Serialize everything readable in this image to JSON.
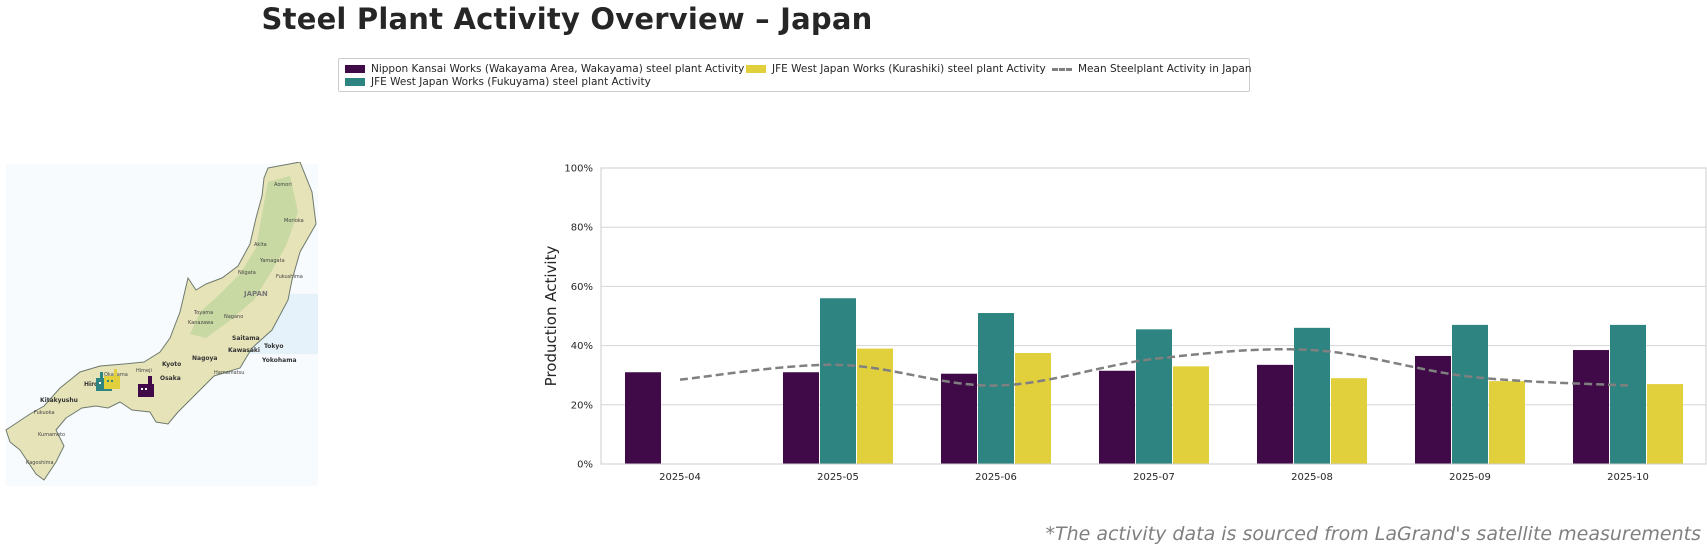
{
  "title": "Steel Plant Activity Overview – Japan",
  "footnote": "*The activity data is sourced from LaGrand's satellite measurements",
  "legend": {
    "items": [
      {
        "label": "Nippon Kansai Works (Wakayama Area, Wakayama) steel plant Activity",
        "color": "#3f0a47",
        "kind": "bar"
      },
      {
        "label": "JFE West Japan Works (Fukuyama) steel plant Activity",
        "color": "#2d8480",
        "kind": "bar"
      },
      {
        "label": "JFE West Japan Works (Kurashiki) steel plant Activity",
        "color": "#e1d03c",
        "kind": "bar"
      },
      {
        "label": "Mean Steelplant Activity in Japan",
        "color": "#808080",
        "kind": "line"
      }
    ]
  },
  "map": {
    "country_label": "JAPAN",
    "cities": [
      "Aomori",
      "Morioka",
      "Akita",
      "Yamagata",
      "Niigata",
      "Fukushima",
      "Toyama",
      "Kanazawa",
      "Nagano",
      "Saitama",
      "Tokyo",
      "Kawasaki",
      "Yokohama",
      "Nagoya",
      "Hamamatsu",
      "Kyoto",
      "Osaka",
      "Himeji",
      "Okayama",
      "Hiroshima",
      "Kitakyushu",
      "Fukuoka",
      "Kumamoto",
      "Kagoshima"
    ],
    "markers": [
      {
        "plant": "JFE West Japan Works (Fukuyama)",
        "color": "#2d8480",
        "icon": "factory-icon"
      },
      {
        "plant": "JFE West Japan Works (Kurashiki)",
        "color": "#e1d03c",
        "icon": "factory-icon"
      },
      {
        "plant": "Nippon Kansai Works (Wakayama Area, Wakayama)",
        "color": "#3f0a47",
        "icon": "factory-icon"
      }
    ]
  },
  "chart_data": {
    "type": "bar",
    "title": "Steel Plant Activity Overview – Japan",
    "xlabel": "",
    "ylabel": "Production Activity",
    "ylim": [
      0,
      100
    ],
    "yticks": [
      "0%",
      "20%",
      "40%",
      "60%",
      "80%",
      "100%"
    ],
    "categories": [
      "2025-04",
      "2025-05",
      "2025-06",
      "2025-07",
      "2025-08",
      "2025-09",
      "2025-10"
    ],
    "series": [
      {
        "name": "Nippon Kansai Works (Wakayama Area, Wakayama) steel plant Activity",
        "type": "bar",
        "color": "#3f0a47",
        "values": [
          31,
          31,
          30.5,
          31.5,
          33.5,
          36.5,
          38.5
        ]
      },
      {
        "name": "JFE West Japan Works (Fukuyama) steel plant Activity",
        "type": "bar",
        "color": "#2d8480",
        "values": [
          null,
          56,
          51,
          45.5,
          46,
          47,
          47
        ]
      },
      {
        "name": "JFE West Japan Works (Kurashiki) steel plant Activity",
        "type": "bar",
        "color": "#e1d03c",
        "values": [
          null,
          39,
          37.5,
          33,
          29,
          28,
          27
        ]
      },
      {
        "name": "Mean Steelplant Activity in Japan",
        "type": "line",
        "style": "dashed",
        "color": "#808080",
        "values": [
          28.5,
          33.5,
          26.5,
          35.5,
          38.5,
          29.5,
          26.5
        ]
      }
    ],
    "grid": true,
    "legend_position": "top"
  }
}
